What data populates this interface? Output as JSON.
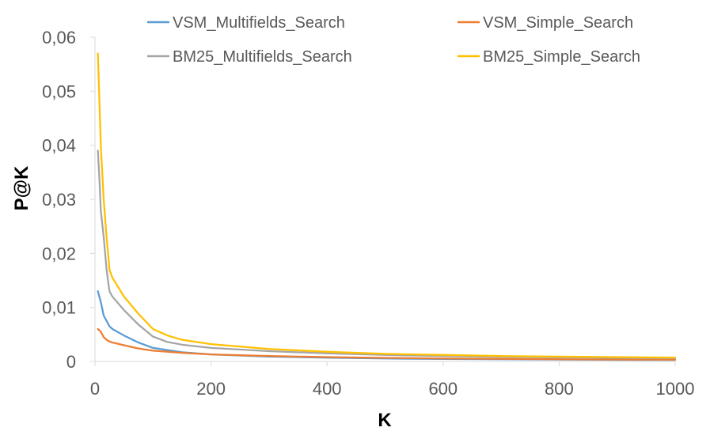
{
  "chart_data": {
    "type": "line",
    "title": "",
    "xlabel": "K",
    "ylabel": "P@K",
    "xlim": [
      0,
      1000
    ],
    "ylim": [
      0,
      0.06
    ],
    "x_ticks": [
      0,
      200,
      400,
      600,
      800,
      1000
    ],
    "x_tick_labels": [
      "0",
      "200",
      "400",
      "600",
      "800",
      "1000"
    ],
    "y_ticks": [
      0,
      0.01,
      0.02,
      0.03,
      0.04,
      0.05,
      0.06
    ],
    "y_tick_labels": [
      "0",
      "0,01",
      "0,02",
      "0,03",
      "0,04",
      "0,05",
      "0,06"
    ],
    "grid": false,
    "legend_position": "top",
    "series": [
      {
        "name": "VSM_Multifields_Search",
        "color": "#5B9BD5",
        "points": [
          [
            5,
            0.013
          ],
          [
            10,
            0.011
          ],
          [
            15,
            0.0085
          ],
          [
            20,
            0.0075
          ],
          [
            25,
            0.0065
          ],
          [
            30,
            0.006
          ],
          [
            50,
            0.0048
          ],
          [
            75,
            0.0035
          ],
          [
            100,
            0.0025
          ],
          [
            150,
            0.0017
          ],
          [
            200,
            0.0013
          ],
          [
            300,
            0.0009
          ],
          [
            400,
            0.0007
          ],
          [
            500,
            0.00055
          ],
          [
            600,
            0.00045
          ],
          [
            700,
            0.0004
          ],
          [
            800,
            0.00035
          ],
          [
            900,
            0.0003
          ],
          [
            1000,
            0.00028
          ]
        ]
      },
      {
        "name": "VSM_Simple_Search",
        "color": "#ED7D31",
        "points": [
          [
            5,
            0.006
          ],
          [
            10,
            0.0055
          ],
          [
            15,
            0.0045
          ],
          [
            20,
            0.004
          ],
          [
            25,
            0.0037
          ],
          [
            30,
            0.0035
          ],
          [
            50,
            0.003
          ],
          [
            75,
            0.0024
          ],
          [
            100,
            0.002
          ],
          [
            150,
            0.0016
          ],
          [
            200,
            0.0013
          ],
          [
            300,
            0.001
          ],
          [
            400,
            0.0008
          ],
          [
            500,
            0.00065
          ],
          [
            600,
            0.00055
          ],
          [
            700,
            0.00048
          ],
          [
            800,
            0.0004
          ],
          [
            900,
            0.00035
          ],
          [
            1000,
            0.00032
          ]
        ]
      },
      {
        "name": "BM25_Multifields_Search",
        "color": "#A5A5A5",
        "points": [
          [
            5,
            0.039
          ],
          [
            8,
            0.033
          ],
          [
            10,
            0.028
          ],
          [
            15,
            0.023
          ],
          [
            20,
            0.017
          ],
          [
            23,
            0.0145
          ],
          [
            25,
            0.013
          ],
          [
            30,
            0.012
          ],
          [
            50,
            0.0095
          ],
          [
            75,
            0.0068
          ],
          [
            100,
            0.0046
          ],
          [
            125,
            0.0036
          ],
          [
            150,
            0.0031
          ],
          [
            200,
            0.0025
          ],
          [
            300,
            0.0019
          ],
          [
            400,
            0.0015
          ],
          [
            500,
            0.0012
          ],
          [
            600,
            0.001
          ],
          [
            700,
            0.00085
          ],
          [
            800,
            0.00075
          ],
          [
            900,
            0.00066
          ],
          [
            1000,
            0.0006
          ]
        ]
      },
      {
        "name": "BM25_Simple_Search",
        "color": "#FFC000",
        "points": [
          [
            5,
            0.057
          ],
          [
            8,
            0.047
          ],
          [
            10,
            0.04
          ],
          [
            15,
            0.03
          ],
          [
            20,
            0.023
          ],
          [
            23,
            0.0195
          ],
          [
            25,
            0.017
          ],
          [
            30,
            0.0155
          ],
          [
            50,
            0.012
          ],
          [
            75,
            0.0088
          ],
          [
            100,
            0.006
          ],
          [
            125,
            0.0048
          ],
          [
            150,
            0.004
          ],
          [
            200,
            0.0032
          ],
          [
            300,
            0.0023
          ],
          [
            400,
            0.0018
          ],
          [
            500,
            0.0014
          ],
          [
            600,
            0.0012
          ],
          [
            700,
            0.001
          ],
          [
            800,
            0.0009
          ],
          [
            900,
            0.0008
          ],
          [
            1000,
            0.00072
          ]
        ]
      }
    ]
  }
}
